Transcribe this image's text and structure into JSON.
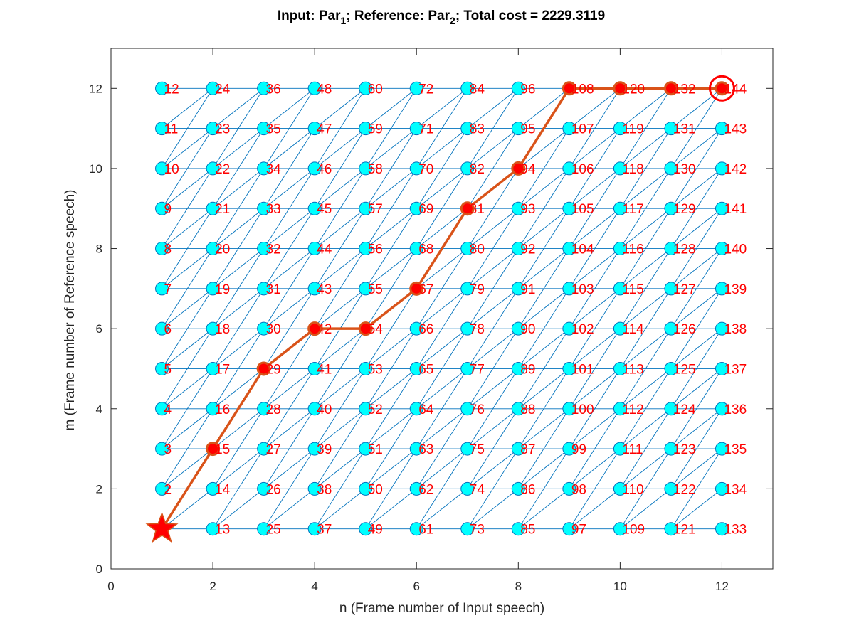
{
  "chart_data": {
    "type": "scatter",
    "title": {
      "parts": [
        "Input: Par",
        "1",
        "; Reference: Par",
        "2",
        "; Total cost = 2229.3119"
      ]
    },
    "xlabel": "n (Frame number of Input speech)",
    "ylabel": "m (Frame number of Reference speech)",
    "xlim": [
      0,
      13
    ],
    "ylim": [
      0,
      13
    ],
    "xticks": [
      0,
      2,
      4,
      6,
      8,
      10,
      12
    ],
    "yticks": [
      0,
      2,
      4,
      6,
      8,
      10,
      12
    ],
    "grid": false,
    "legend": "none",
    "grid_nodes": {
      "n_range": [
        1,
        12
      ],
      "m_range": [
        1,
        12
      ]
    },
    "node_numbering": "(n-1)*12 + m",
    "start_node": [
      1,
      1
    ],
    "end_node": [
      12,
      12
    ],
    "optimal_path": [
      [
        1,
        1
      ],
      [
        2,
        3
      ],
      [
        3,
        5
      ],
      [
        4,
        6
      ],
      [
        5,
        6
      ],
      [
        6,
        7
      ],
      [
        7,
        9
      ],
      [
        8,
        10
      ],
      [
        9,
        12
      ],
      [
        10,
        12
      ],
      [
        11,
        12
      ],
      [
        12,
        12
      ]
    ],
    "colors": {
      "node_fill": "#00ffff",
      "node_edge": "#0072bd",
      "edge_line": "#0072bd",
      "path_line": "#d95319",
      "path_marker": "#ff0000",
      "node_label": "#ff0000"
    }
  }
}
